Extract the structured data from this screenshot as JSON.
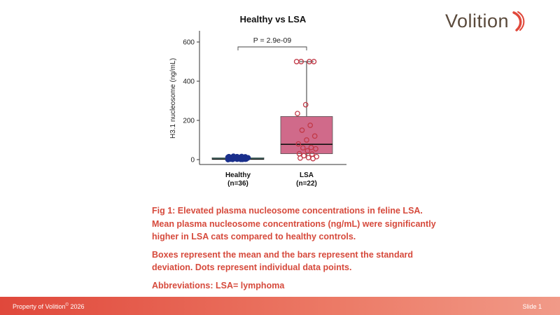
{
  "brand": {
    "name": "Volition",
    "accent": "#e0483b",
    "mark_color": "#e0483b"
  },
  "chart_data": {
    "type": "box",
    "title": "Healthy vs LSA",
    "ylabel": "H3.1 nucleosome (ng/mL)",
    "xlabel": "",
    "ylim": [
      -25,
      650
    ],
    "yticks": [
      0,
      200,
      400,
      600
    ],
    "categories": [
      "Healthy\n(n=36)",
      "LSA\n(n=22)"
    ],
    "boxes": [
      {
        "name": "Healthy",
        "q1": 0,
        "median": 3,
        "q3": 6,
        "whisker_low": 0,
        "whisker_high": 12,
        "color": "#7fd6cc"
      },
      {
        "name": "LSA",
        "q1": 30,
        "median": 78,
        "q3": 220,
        "whisker_low": 10,
        "whisker_high": 500,
        "color": "#d06a8a"
      }
    ],
    "points": [
      {
        "series": "Healthy",
        "color": "#1a2f8c",
        "values": [
          0,
          1,
          1,
          2,
          2,
          3,
          3,
          4,
          4,
          5,
          5,
          6,
          6,
          7,
          7,
          8,
          8,
          9,
          9,
          10,
          10,
          11,
          11,
          12,
          12,
          13,
          14,
          15,
          15,
          16,
          17,
          3,
          4,
          2,
          1,
          5
        ]
      },
      {
        "series": "LSA",
        "color": "#c23a48",
        "values": [
          500,
          500,
          500,
          500,
          280,
          235,
          175,
          150,
          120,
          100,
          80,
          62,
          60,
          55,
          45,
          30,
          28,
          20,
          15,
          10,
          8,
          5
        ]
      }
    ],
    "annotation": "P = 2.9e-09",
    "grid": false
  },
  "caption": {
    "p1": "Fig 1: Elevated plasma nucleosome concentrations in feline LSA. Mean plasma nucleosome concentrations (ng/mL) were significantly higher in LSA cats compared to healthy controls.",
    "p2": "Boxes represent the mean and the bars represent the standard deviation. Dots represent individual data points.",
    "p3": "Abbreviations: LSA= lymphoma"
  },
  "footer": {
    "left_text": "Property of Volition",
    "left_sup": "©",
    "left_year": "2026",
    "right_text": "Slide 1"
  }
}
